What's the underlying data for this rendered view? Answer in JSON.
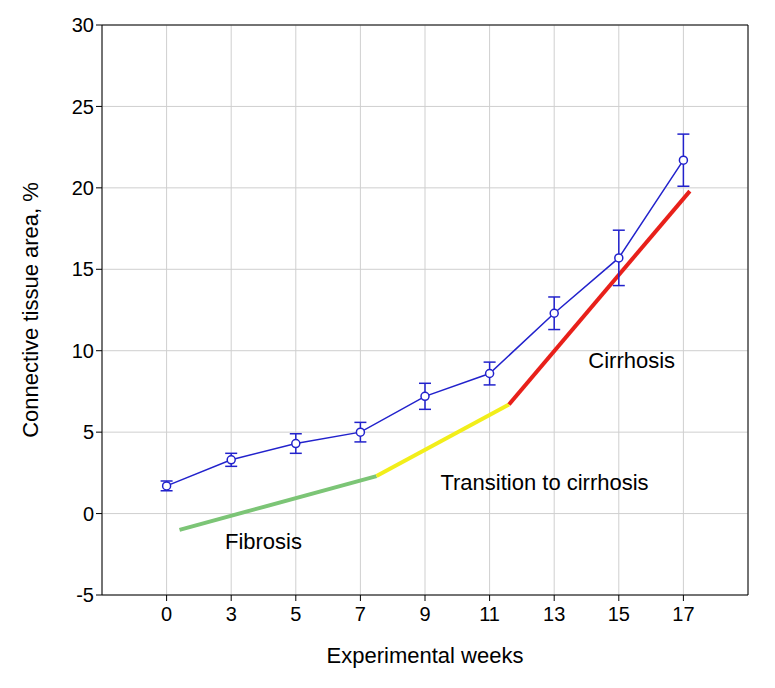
{
  "chart_data": {
    "type": "line",
    "x_label": "Experimental weeks",
    "y_label": "Connective tissue area, %",
    "categories": [
      "0",
      "3",
      "5",
      "7",
      "9",
      "11",
      "13",
      "15",
      "17"
    ],
    "values": [
      1.7,
      3.3,
      4.3,
      5.0,
      7.2,
      8.6,
      12.3,
      15.7,
      21.7
    ],
    "errors": [
      0.3,
      0.4,
      0.6,
      0.6,
      0.8,
      0.7,
      1.0,
      1.7,
      1.6
    ],
    "color": "#2222cc",
    "marker": "open_circle",
    "ylim": [
      -5,
      30
    ],
    "yticks": [
      -5,
      0,
      5,
      10,
      15,
      20,
      25,
      30
    ],
    "grid": true,
    "segments": [
      {
        "color": "#7cc576",
        "x": [
          0.2,
          3.25
        ],
        "y": [
          -1,
          2.3
        ]
      },
      {
        "color": "#f2ee1a",
        "x": [
          3.25,
          5.3
        ],
        "y": [
          2.3,
          6.7
        ]
      },
      {
        "color": "#e8201a",
        "x": [
          5.3,
          8.1
        ],
        "y": [
          6.7,
          19.8
        ]
      }
    ],
    "annotations": [
      {
        "text": "Fibrosis",
        "x": 1.5,
        "y": -1.7
      },
      {
        "text": "Transition to cirrhosis",
        "x": 5.85,
        "y": 1.9
      },
      {
        "text": "Cirrhosis",
        "x": 7.2,
        "y": 9.4
      }
    ]
  }
}
